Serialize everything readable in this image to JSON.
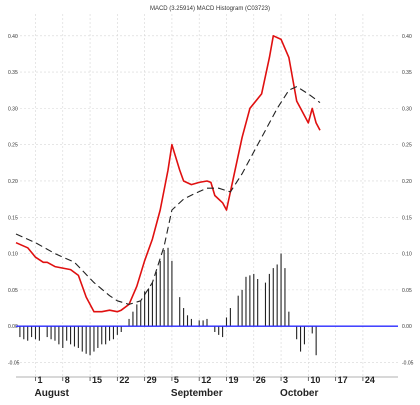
{
  "chart_data": {
    "type": "line",
    "title": "MACD (3.25914) MACD Histogram (C03723)",
    "ylim": [
      -0.07,
      0.43
    ],
    "yticks": [
      "0.40",
      "0.35",
      "0.30",
      "0.25",
      "0.20",
      "0.15",
      "0.10",
      "0.05",
      "0.00",
      "-0.05"
    ],
    "ytick_values": [
      0.4,
      0.35,
      0.3,
      0.25,
      0.2,
      0.15,
      0.1,
      0.05,
      0.0,
      -0.05
    ],
    "xlim": [
      0,
      98
    ],
    "x_ticks": [
      {
        "label": "1",
        "x": 5
      },
      {
        "label": "8",
        "x": 12
      },
      {
        "label": "15",
        "x": 19
      },
      {
        "label": "22",
        "x": 26
      },
      {
        "label": "29",
        "x": 33
      },
      {
        "label": "5",
        "x": 40
      },
      {
        "label": "12",
        "x": 47
      },
      {
        "label": "19",
        "x": 54
      },
      {
        "label": "26",
        "x": 61
      },
      {
        "label": "3",
        "x": 68
      },
      {
        "label": "10",
        "x": 75
      },
      {
        "label": "17",
        "x": 82
      },
      {
        "label": "24",
        "x": 89
      }
    ],
    "months": [
      {
        "label": "August",
        "x": 5
      },
      {
        "label": "September",
        "x": 40
      },
      {
        "label": "October",
        "x": 68
      }
    ],
    "grid": true,
    "zero_line_color": "#2a2aff",
    "series": [
      {
        "role": "macd",
        "color": "#e01010",
        "points": [
          [
            0,
            0.115
          ],
          [
            3,
            0.108
          ],
          [
            5,
            0.095
          ],
          [
            7,
            0.088
          ],
          [
            8,
            0.088
          ],
          [
            10,
            0.082
          ],
          [
            12,
            0.08
          ],
          [
            14,
            0.078
          ],
          [
            16,
            0.07
          ],
          [
            18,
            0.04
          ],
          [
            20,
            0.02
          ],
          [
            22,
            0.02
          ],
          [
            24,
            0.022
          ],
          [
            26,
            0.02
          ],
          [
            27,
            0.022
          ],
          [
            29,
            0.03
          ],
          [
            31,
            0.055
          ],
          [
            33,
            0.09
          ],
          [
            35,
            0.12
          ],
          [
            37,
            0.16
          ],
          [
            39,
            0.215
          ],
          [
            40,
            0.25
          ],
          [
            42,
            0.215
          ],
          [
            43,
            0.2
          ],
          [
            45,
            0.195
          ],
          [
            47,
            0.198
          ],
          [
            49,
            0.2
          ],
          [
            50,
            0.198
          ],
          [
            51,
            0.18
          ],
          [
            53,
            0.17
          ],
          [
            54,
            0.16
          ],
          [
            56,
            0.21
          ],
          [
            58,
            0.26
          ],
          [
            60,
            0.3
          ],
          [
            63,
            0.32
          ],
          [
            65,
            0.37
          ],
          [
            66,
            0.4
          ],
          [
            68,
            0.395
          ],
          [
            70,
            0.37
          ],
          [
            72,
            0.31
          ],
          [
            73,
            0.3
          ],
          [
            75,
            0.28
          ],
          [
            76,
            0.3
          ],
          [
            77,
            0.28
          ],
          [
            78,
            0.27
          ]
        ]
      },
      {
        "role": "signal",
        "color": "#222222",
        "points": [
          [
            0,
            0.127
          ],
          [
            5,
            0.115
          ],
          [
            10,
            0.1
          ],
          [
            15,
            0.088
          ],
          [
            20,
            0.06
          ],
          [
            24,
            0.042
          ],
          [
            26,
            0.035
          ],
          [
            29,
            0.03
          ],
          [
            32,
            0.035
          ],
          [
            35,
            0.06
          ],
          [
            38,
            0.11
          ],
          [
            40,
            0.16
          ],
          [
            43,
            0.175
          ],
          [
            46,
            0.183
          ],
          [
            49,
            0.19
          ],
          [
            52,
            0.19
          ],
          [
            55,
            0.185
          ],
          [
            58,
            0.21
          ],
          [
            61,
            0.24
          ],
          [
            64,
            0.27
          ],
          [
            67,
            0.3
          ],
          [
            70,
            0.325
          ],
          [
            72,
            0.33
          ],
          [
            75,
            0.32
          ],
          [
            78,
            0.308
          ]
        ]
      }
    ],
    "histogram": {
      "color": "#222222",
      "bars": [
        [
          1,
          -0.015
        ],
        [
          2,
          -0.018
        ],
        [
          3,
          -0.02
        ],
        [
          4,
          -0.015
        ],
        [
          5,
          -0.018
        ],
        [
          6,
          -0.02
        ],
        [
          8,
          -0.015
        ],
        [
          9,
          -0.018
        ],
        [
          10,
          -0.02
        ],
        [
          11,
          -0.025
        ],
        [
          12,
          -0.03
        ],
        [
          13,
          -0.02
        ],
        [
          14,
          -0.025
        ],
        [
          15,
          -0.028
        ],
        [
          16,
          -0.03
        ],
        [
          17,
          -0.035
        ],
        [
          18,
          -0.038
        ],
        [
          19,
          -0.04
        ],
        [
          20,
          -0.035
        ],
        [
          21,
          -0.03
        ],
        [
          22,
          -0.025
        ],
        [
          23,
          -0.025
        ],
        [
          24,
          -0.02
        ],
        [
          25,
          -0.018
        ],
        [
          26,
          -0.012
        ],
        [
          27,
          -0.008
        ],
        [
          29,
          0.01
        ],
        [
          30,
          0.02
        ],
        [
          31,
          0.03
        ],
        [
          32,
          0.035
        ],
        [
          33,
          0.048
        ],
        [
          34,
          0.052
        ],
        [
          35,
          0.06
        ],
        [
          36,
          0.075
        ],
        [
          37,
          0.09
        ],
        [
          38,
          0.105
        ],
        [
          39,
          0.108
        ],
        [
          40,
          0.09
        ],
        [
          42,
          0.04
        ],
        [
          43,
          0.025
        ],
        [
          44,
          0.015
        ],
        [
          45,
          0.01
        ],
        [
          47,
          0.008
        ],
        [
          48,
          0.008
        ],
        [
          49,
          0.01
        ],
        [
          51,
          -0.008
        ],
        [
          52,
          -0.012
        ],
        [
          53,
          -0.015
        ],
        [
          54,
          0.012
        ],
        [
          55,
          0.025
        ],
        [
          57,
          0.042
        ],
        [
          58,
          0.05
        ],
        [
          59,
          0.068
        ],
        [
          60,
          0.07
        ],
        [
          61,
          0.072
        ],
        [
          62,
          0.065
        ],
        [
          64,
          0.06
        ],
        [
          65,
          0.072
        ],
        [
          66,
          0.08
        ],
        [
          67,
          0.085
        ],
        [
          68,
          0.1
        ],
        [
          69,
          0.08
        ],
        [
          70,
          0.02
        ],
        [
          72,
          -0.018
        ],
        [
          73,
          -0.035
        ],
        [
          74,
          -0.025
        ],
        [
          76,
          -0.01
        ],
        [
          77,
          -0.04
        ]
      ]
    }
  }
}
